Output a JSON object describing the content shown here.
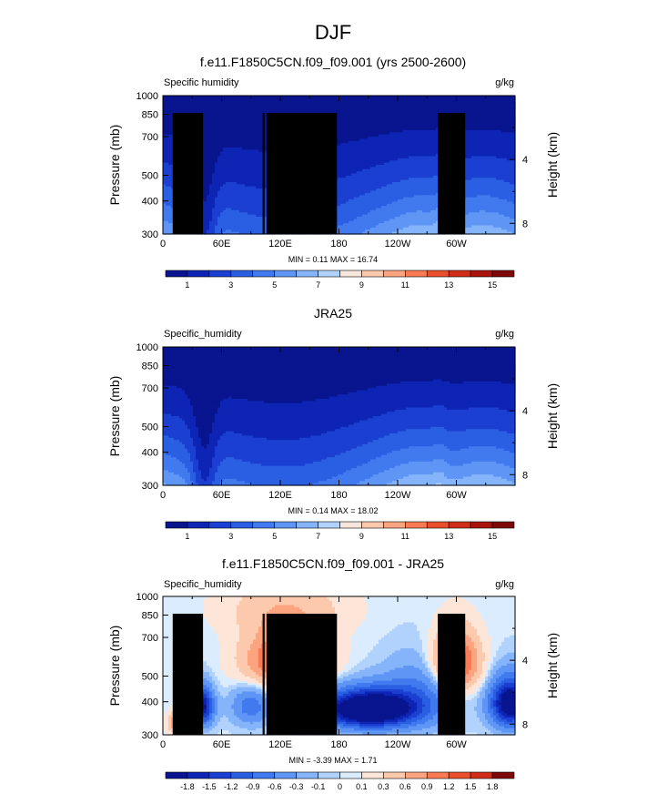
{
  "page": {
    "title": "DJF"
  },
  "chart_data": [
    {
      "type": "heatmap",
      "title": "f.e11.F1850C5CN.f09_f09.001 (yrs 2500-2600)",
      "variable_label": "Specific humidity",
      "units": "g/kg",
      "ylabel": "Pressure (mb)",
      "ylabel_right": "Height (km)",
      "x_ticks": [
        "0",
        "60E",
        "120E",
        "180",
        "120W",
        "60W"
      ],
      "y_ticks": [
        "300",
        "400",
        "500",
        "700",
        "850",
        "1000"
      ],
      "y2_ticks": [
        "8",
        "4"
      ],
      "stats": "MIN =   0.11   MAX =  16.74",
      "colorbar_labels": [
        "1",
        "3",
        "5",
        "7",
        "9",
        "11",
        "13",
        "15"
      ]
    },
    {
      "type": "heatmap",
      "title": "JRA25",
      "variable_label": "Specific_humidity",
      "units": "g/kg",
      "ylabel": "Pressure (mb)",
      "ylabel_right": "Height (km)",
      "x_ticks": [
        "0",
        "60E",
        "120E",
        "180",
        "120W",
        "60W"
      ],
      "y_ticks": [
        "300",
        "400",
        "500",
        "700",
        "850",
        "1000"
      ],
      "y2_ticks": [
        "8",
        "4"
      ],
      "stats": "MIN =   0.14   MAX =  18.02",
      "colorbar_labels": [
        "1",
        "3",
        "5",
        "7",
        "9",
        "11",
        "13",
        "15"
      ]
    },
    {
      "type": "heatmap",
      "title": "f.e11.F1850C5CN.f09_f09.001 - JRA25",
      "variable_label": "Specific_humidity",
      "units": "g/kg",
      "ylabel": "Pressure (mb)",
      "ylabel_right": "Height (km)",
      "x_ticks": [
        "0",
        "60E",
        "120E",
        "180",
        "120W",
        "60W"
      ],
      "y_ticks": [
        "300",
        "400",
        "500",
        "700",
        "850",
        "1000"
      ],
      "y2_ticks": [
        "8",
        "4"
      ],
      "stats": "MIN =  -3.39   MAX =   1.71",
      "colorbar_labels": [
        "-1.8",
        "-1.5",
        "-1.2",
        "-0.9",
        "-0.6",
        "-0.3",
        "-0.1",
        "0",
        "0.1",
        "0.3",
        "0.6",
        "0.9",
        "1.2",
        "1.5",
        "1.8"
      ]
    }
  ],
  "colors": {
    "seq": [
      "#08158f",
      "#0d24b4",
      "#1a3fd1",
      "#2a5ee3",
      "#4179ee",
      "#5f96f6",
      "#85b4fb",
      "#b2d2fe",
      "#f7e6dc",
      "#fcc9ad",
      "#fca47f",
      "#f97a53",
      "#ea4f2d",
      "#cf2d18",
      "#a8140c",
      "#7e0707"
    ],
    "div": [
      "#08158f",
      "#0d24b4",
      "#1a3fd1",
      "#2a5ee3",
      "#4179ee",
      "#5f96f6",
      "#85b4fb",
      "#b2d2fe",
      "#dcecff",
      "#fde5d8",
      "#fcc9ad",
      "#fca47f",
      "#f97a53",
      "#ea4f2d",
      "#cf2d18",
      "#7e0707"
    ]
  }
}
